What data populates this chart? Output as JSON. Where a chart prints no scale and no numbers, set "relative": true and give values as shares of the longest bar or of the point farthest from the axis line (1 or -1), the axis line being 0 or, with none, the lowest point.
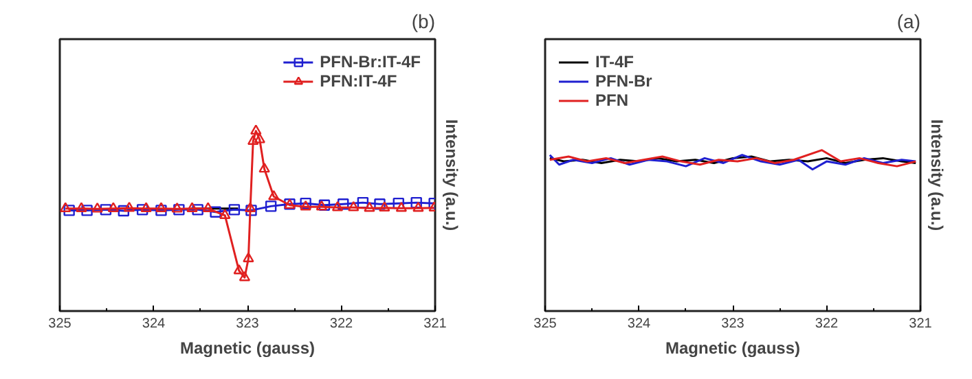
{
  "chart_data": [
    {
      "type": "line",
      "title": "(b)",
      "xlabel": "Magnetic (gauss)",
      "ylabel": "Intensity (a.u.)",
      "relative": true,
      "xlim": [
        325,
        321
      ],
      "xticks": [
        325,
        324,
        323,
        322,
        321
      ],
      "grid": false,
      "legend": "top right",
      "tick_labels": "x",
      "series": [
        {
          "color": "#000000",
          "marker": "none",
          "x": [
            323.6,
            323.1
          ],
          "values": [
            0.569,
            0.569
          ]
        },
        {
          "name": "PFN-Br:IT-4F",
          "color": "#1f1fd0",
          "marker": "square",
          "x": [
            324.9,
            324.71,
            324.51,
            324.32,
            324.12,
            323.92,
            323.73,
            323.53,
            323.34,
            323.14,
            322.96,
            322.75,
            322.55,
            322.38,
            322.18,
            321.98,
            321.77,
            321.59,
            321.39,
            321.2,
            321.01
          ],
          "values": [
            0.559,
            0.559,
            0.563,
            0.557,
            0.563,
            0.559,
            0.563,
            0.563,
            0.55,
            0.563,
            0.559,
            0.582,
            0.594,
            0.598,
            0.588,
            0.594,
            0.602,
            0.594,
            0.598,
            0.602,
            0.598
          ]
        },
        {
          "name": "PFN:IT-4F",
          "color": "#e02020",
          "marker": "triangle",
          "x": [
            324.94,
            324.77,
            324.6,
            324.43,
            324.26,
            324.08,
            323.92,
            323.75,
            323.59,
            323.42,
            323.24,
            323.09,
            323.03,
            322.99,
            322.97,
            322.94,
            322.91,
            322.87,
            322.82,
            322.72,
            322.55,
            322.38,
            322.21,
            322.04,
            321.87,
            321.7,
            321.54,
            321.36,
            321.18,
            321.01
          ],
          "values": [
            0.569,
            0.569,
            0.567,
            0.569,
            0.571,
            0.569,
            0.569,
            0.567,
            0.569,
            0.569,
            0.531,
            0.224,
            0.186,
            0.291,
            0.569,
            0.943,
            1.0,
            0.952,
            0.789,
            0.636,
            0.588,
            0.579,
            0.579,
            0.575,
            0.575,
            0.571,
            0.573,
            0.571,
            0.571,
            0.573
          ]
        }
      ]
    },
    {
      "type": "line",
      "title": "(a)",
      "xlabel": "Magnetic (gauss)",
      "ylabel": "Intensity (a.u.)",
      "relative": true,
      "xlim": [
        325,
        321
      ],
      "xticks": [
        325,
        324,
        323,
        322,
        321
      ],
      "grid": false,
      "legend": "top left",
      "tick_labels": "x",
      "series": [
        {
          "name": "IT-4F",
          "color": "#000000",
          "marker": "none",
          "x": [
            324.95,
            324.8,
            324.6,
            324.4,
            324.2,
            324.0,
            323.8,
            323.6,
            323.4,
            323.2,
            323.0,
            322.8,
            322.6,
            322.4,
            322.2,
            322.0,
            321.8,
            321.6,
            321.4,
            321.2,
            321.05
          ],
          "values": [
            0.95,
            0.93,
            0.94,
            0.92,
            0.94,
            0.93,
            0.95,
            0.93,
            0.94,
            0.92,
            0.95,
            0.96,
            0.93,
            0.94,
            0.93,
            0.95,
            0.92,
            0.94,
            0.95,
            0.93,
            0.92
          ]
        },
        {
          "name": "PFN-Br",
          "color": "#1f1fd0",
          "marker": "none",
          "x": [
            324.95,
            324.85,
            324.7,
            324.5,
            324.3,
            324.1,
            323.9,
            323.7,
            323.5,
            323.3,
            323.1,
            322.9,
            322.7,
            322.5,
            322.3,
            322.15,
            322.0,
            321.8,
            321.6,
            321.4,
            321.2,
            321.05
          ],
          "values": [
            0.97,
            0.91,
            0.94,
            0.92,
            0.95,
            0.91,
            0.94,
            0.93,
            0.9,
            0.95,
            0.92,
            0.97,
            0.93,
            0.91,
            0.94,
            0.88,
            0.93,
            0.91,
            0.95,
            0.92,
            0.94,
            0.93
          ]
        },
        {
          "name": "PFN",
          "color": "#e02020",
          "marker": "none",
          "x": [
            324.95,
            324.75,
            324.55,
            324.35,
            324.15,
            323.95,
            323.75,
            323.55,
            323.35,
            323.15,
            322.95,
            322.75,
            322.55,
            322.35,
            322.05,
            321.85,
            321.65,
            321.45,
            321.25,
            321.05
          ],
          "values": [
            0.94,
            0.96,
            0.93,
            0.95,
            0.92,
            0.94,
            0.96,
            0.93,
            0.91,
            0.94,
            0.93,
            0.95,
            0.92,
            0.94,
            1.0,
            0.93,
            0.95,
            0.92,
            0.9,
            0.93
          ]
        }
      ]
    }
  ]
}
